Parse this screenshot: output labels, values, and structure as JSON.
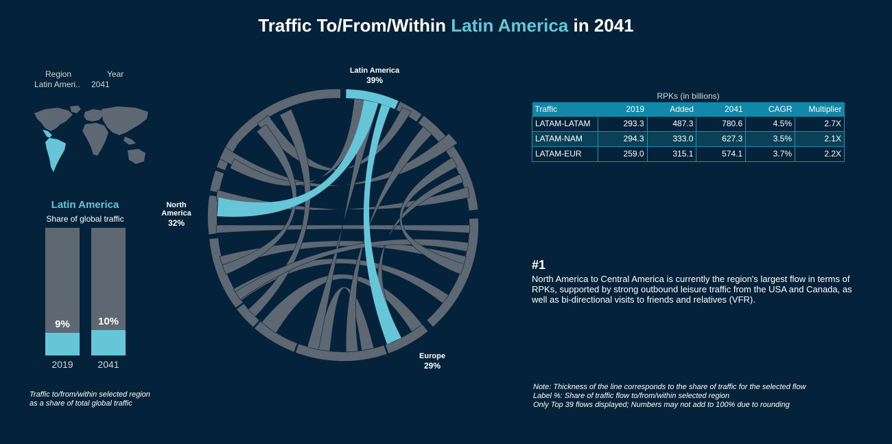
{
  "title": {
    "prefix": "Traffic To/From/Within ",
    "highlight": "Latin America",
    "suffix": " in 2041"
  },
  "filters": {
    "region_label": "Region",
    "region_value": "Latin Ameri..",
    "year_label": "Year",
    "year_value": "2041"
  },
  "colors": {
    "background": "#04223a",
    "accent": "#66c5d6",
    "grey": "#5d6873",
    "table_header": "#1187aa"
  },
  "share_panel": {
    "region": "Latin America",
    "subtitle": "Share of global traffic",
    "bars": [
      {
        "year": "2019",
        "label": "9%",
        "value": 0.09
      },
      {
        "year": "2041",
        "label": "10%",
        "value": 0.1
      }
    ],
    "caption_line1": "Traffic to/from/within selected region",
    "caption_line2": "as a share of total global traffic"
  },
  "chart_data": {
    "type": "chord",
    "highlighted_flows": [
      {
        "name": "Latin America",
        "label": "39%",
        "value": 39
      },
      {
        "name": "North America",
        "label": "32%",
        "value": 32
      },
      {
        "name": "Europe",
        "label": "29%",
        "value": 29
      }
    ],
    "labels": {
      "latam_name": "Latin America",
      "latam_pct": "39%",
      "nam_name_1": "North",
      "nam_name_2": "America",
      "nam_pct": "32%",
      "eur_name": "Europe",
      "eur_pct": "29%"
    }
  },
  "table": {
    "caption": "RPKs (in billions)",
    "headers": [
      "Traffic",
      "2019",
      "Added",
      "2041",
      "CAGR",
      "Multiplier"
    ],
    "rows": [
      [
        "LATAM-LATAM",
        "293.3",
        "487.3",
        "780.6",
        "4.5%",
        "2.7X"
      ],
      [
        "LATAM-NAM",
        "294.3",
        "333.0",
        "627.3",
        "3.5%",
        "2.1X"
      ],
      [
        "LATAM-EUR",
        "259.0",
        "315.1",
        "574.1",
        "3.7%",
        "2.2X"
      ]
    ]
  },
  "insight": {
    "heading": "#1",
    "body": "North America to Central America is currently the region's largest flow in terms of RPKs, supported by strong outbound leisure traffic from the USA and Canada, as well as bi-directional visits to friends and relatives (VFR)."
  },
  "notes": {
    "line1": "Note: Thickness of the line corresponds to the share of traffic for the selected flow",
    "line2": "Label %: Share of traffic flow to/from/within selected region",
    "line3": "Only Top 39 flows displayed; Numbers may not add to 100% due to rounding"
  }
}
